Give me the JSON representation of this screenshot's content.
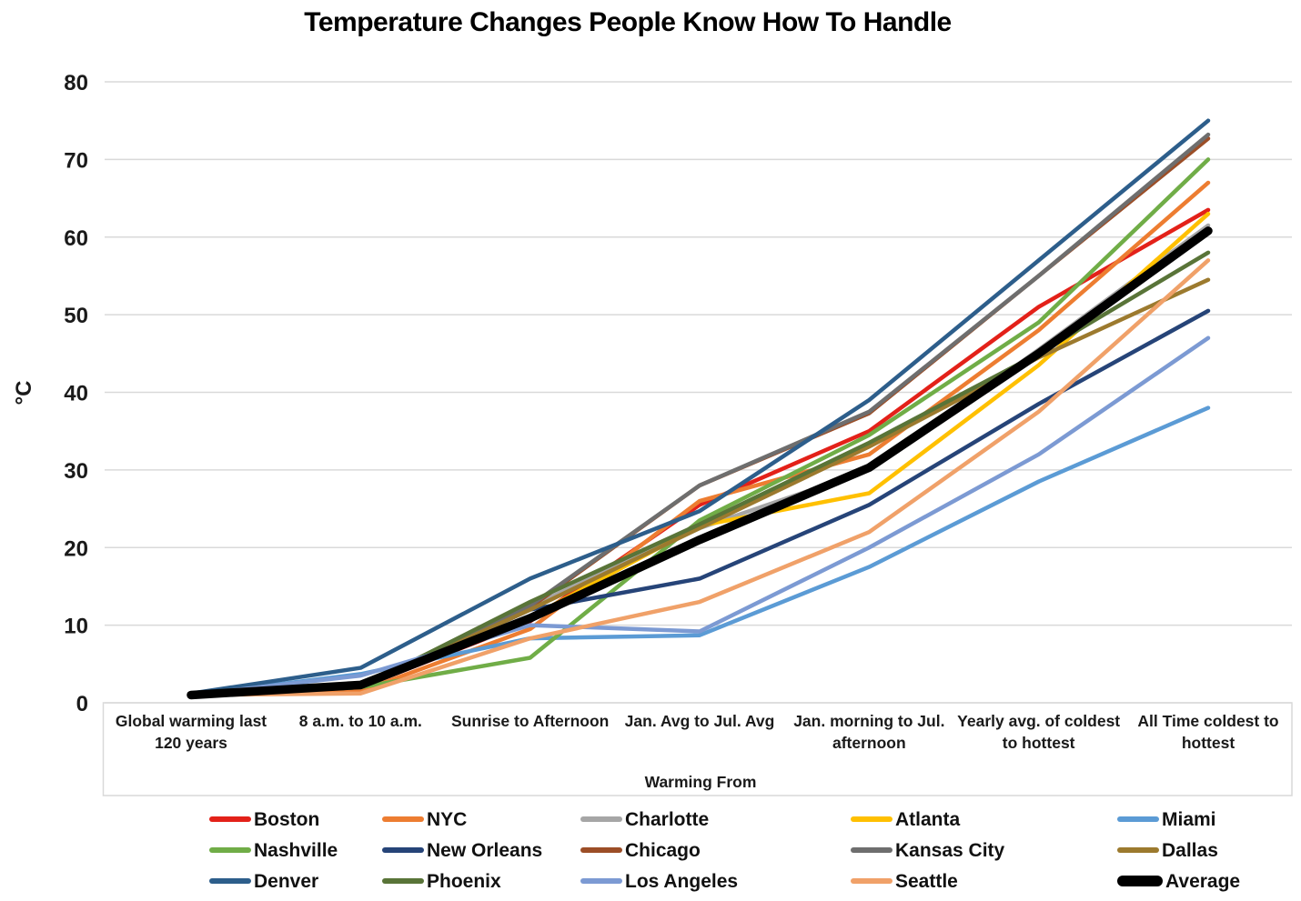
{
  "title": "Temperature Changes People Know How To Handle",
  "chart_data": {
    "type": "line",
    "title": "Temperature Changes People Know How To Handle",
    "xlabel": "Warming From",
    "ylabel": "°C",
    "ylim": [
      0,
      80
    ],
    "yticks": [
      0,
      10,
      20,
      30,
      40,
      50,
      60,
      70,
      80
    ],
    "grid": "horizontal",
    "legend_position": "bottom",
    "categories": [
      {
        "label": "Global warming last 120 years",
        "lines": [
          "Global warming last",
          "120 years"
        ]
      },
      {
        "label": "8 a.m. to 10 a.m.",
        "lines": [
          "8 a.m. to 10 a.m."
        ]
      },
      {
        "label": "Sunrise to Afternoon",
        "lines": [
          "Sunrise to Afternoon"
        ]
      },
      {
        "label": "Jan. Avg to Jul. Avg",
        "lines": [
          "Jan. Avg to Jul. Avg"
        ]
      },
      {
        "label": "Jan. morning to Jul. afternoon",
        "lines": [
          "Jan. morning to Jul.",
          "afternoon"
        ]
      },
      {
        "label": "Yearly avg. of coldest to hottest",
        "lines": [
          "Yearly avg. of coldest",
          "to hottest"
        ]
      },
      {
        "label": "All Time coldest to hottest",
        "lines": [
          "All Time coldest to",
          "hottest"
        ]
      }
    ],
    "series": [
      {
        "name": "Boston",
        "color": "#E32119",
        "width": 4.5,
        "values": [
          1.0,
          2.0,
          10.5,
          25.5,
          35.0,
          51.0,
          63.5
        ]
      },
      {
        "name": "NYC",
        "color": "#ED7D31",
        "width": 4.5,
        "values": [
          1.0,
          1.5,
          9.5,
          26.0,
          32.0,
          48.0,
          67.0
        ]
      },
      {
        "name": "Charlotte",
        "color": "#A6A6A6",
        "width": 4.5,
        "values": [
          1.0,
          2.0,
          12.4,
          22.5,
          30.0,
          45.5,
          61.5
        ]
      },
      {
        "name": "Atlanta",
        "color": "#FFC000",
        "width": 4.5,
        "values": [
          1.0,
          2.0,
          11.0,
          22.8,
          27.0,
          43.5,
          63.0
        ]
      },
      {
        "name": "Miami",
        "color": "#5B9BD5",
        "width": 4.5,
        "values": [
          1.0,
          3.7,
          8.3,
          8.7,
          17.5,
          28.5,
          38.0
        ]
      },
      {
        "name": "Nashville",
        "color": "#70AD47",
        "width": 4.5,
        "values": [
          1.0,
          2.0,
          5.8,
          23.5,
          34.5,
          49.0,
          70.0
        ]
      },
      {
        "name": "New Orleans",
        "color": "#264478",
        "width": 4.5,
        "values": [
          1.0,
          2.0,
          12.0,
          16.0,
          25.5,
          38.5,
          50.5
        ]
      },
      {
        "name": "Chicago",
        "color": "#9C4E27",
        "width": 4.5,
        "values": [
          1.0,
          2.0,
          12.3,
          28.0,
          37.3,
          55.0,
          72.7
        ]
      },
      {
        "name": "Kansas City",
        "color": "#6E6E6E",
        "width": 4.5,
        "values": [
          1.0,
          2.0,
          12.5,
          28.0,
          37.5,
          55.0,
          73.2
        ]
      },
      {
        "name": "Dallas",
        "color": "#9C7A2E",
        "width": 4.5,
        "values": [
          1.0,
          2.0,
          12.0,
          22.5,
          33.0,
          44.5,
          54.5
        ]
      },
      {
        "name": "Denver",
        "color": "#2D5E8B",
        "width": 4.5,
        "values": [
          1.2,
          4.5,
          16.0,
          24.7,
          39.0,
          57.0,
          75.0
        ]
      },
      {
        "name": "Phoenix",
        "color": "#597438",
        "width": 4.5,
        "values": [
          1.0,
          2.0,
          13.0,
          23.0,
          33.5,
          45.0,
          58.0
        ]
      },
      {
        "name": "Los Angeles",
        "color": "#7C9AD3",
        "width": 4.5,
        "values": [
          1.0,
          3.5,
          10.0,
          9.2,
          20.0,
          32.0,
          47.0
        ]
      },
      {
        "name": "Seattle",
        "color": "#F0A169",
        "width": 4.5,
        "values": [
          1.0,
          1.2,
          8.3,
          13.0,
          22.0,
          37.5,
          57.0
        ]
      },
      {
        "name": "Average",
        "color": "#000000",
        "width": 9.5,
        "values": [
          1.0,
          2.3,
          10.9,
          21.0,
          30.3,
          45.0,
          60.8
        ]
      }
    ],
    "grid_color": "#D9D9D9",
    "axis_text_color": "#1A1A1A"
  },
  "legend": {
    "rows": 3,
    "cols": 5
  }
}
